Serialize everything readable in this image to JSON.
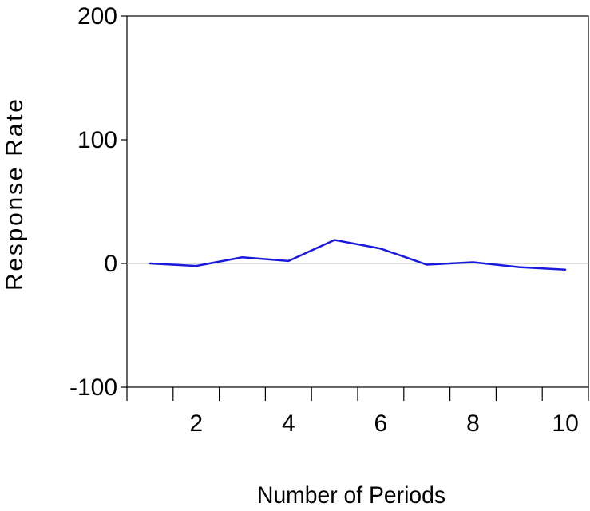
{
  "chart_data": {
    "type": "line",
    "title": "",
    "xlabel": "Number of Periods",
    "ylabel": "Response Rate",
    "x": [
      1,
      2,
      3,
      4,
      5,
      6,
      7,
      8,
      9,
      10
    ],
    "series": [
      {
        "values": [
          0,
          -2,
          5,
          2,
          19,
          12,
          -1,
          1,
          -3,
          -5
        ],
        "color": "#1a1adf"
      }
    ],
    "xlim": [
      0.5,
      10.5
    ],
    "ylim": [
      -100,
      200
    ],
    "y_ticks": [
      -100,
      0,
      100,
      200
    ],
    "x_tick_labels": [
      2,
      4,
      6,
      8,
      10
    ],
    "zero_line": true,
    "zero_line_color": "#c8c8c8",
    "grid": false,
    "legend": "none"
  }
}
